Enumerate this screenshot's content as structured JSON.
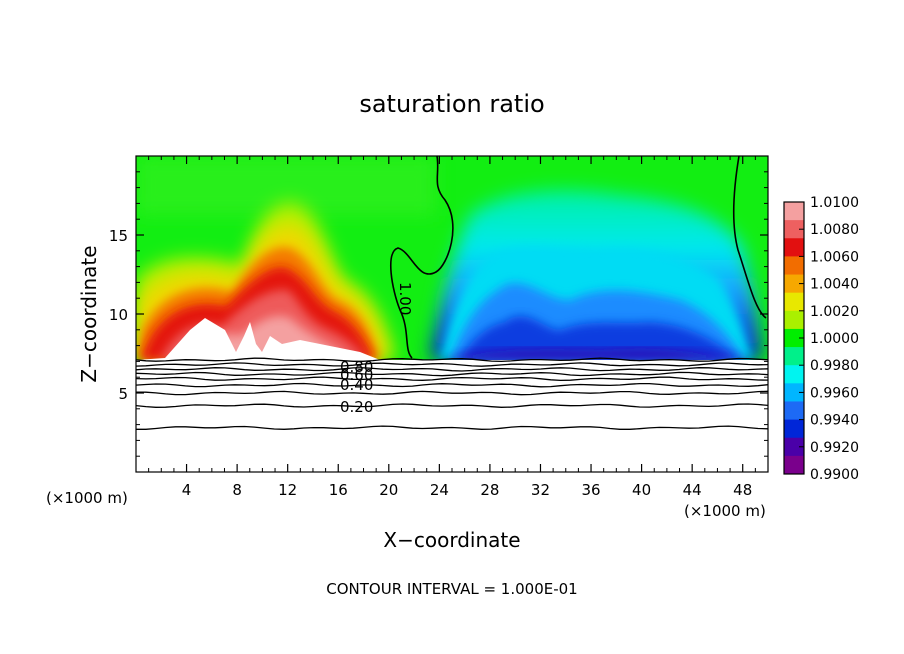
{
  "chart_data": {
    "type": "heatmap",
    "title": "saturation ratio",
    "xlabel": "X−coordinate",
    "ylabel": "Z−coordinate",
    "x_unit_left": "(×1000 m)",
    "x_unit_right": "(×1000 m)",
    "footer": "CONTOUR INTERVAL = 1.000E-01",
    "xlim": [
      0,
      50
    ],
    "ylim": [
      0,
      20
    ],
    "xticks": [
      4,
      8,
      12,
      16,
      20,
      24,
      28,
      32,
      36,
      40,
      44,
      48
    ],
    "yticks": [
      5,
      10,
      15
    ],
    "colorbar": {
      "levels": [
        1.01,
        1.008,
        1.006,
        1.004,
        1.002,
        1.0,
        0.998,
        0.996,
        0.994,
        0.992,
        0.99
      ],
      "tick_labels": [
        "1.0100",
        "1.0080",
        "1.0060",
        "1.0040",
        "1.0020",
        "1.0000",
        "0.9980",
        "0.9960",
        "0.9940",
        "0.9920",
        "0.9900"
      ],
      "colors": [
        "#f4a0a0",
        "#ee6060",
        "#e21010",
        "#f26d00",
        "#f6a800",
        "#e8e800",
        "#aaf000",
        "#00ee00",
        "#00f08a",
        "#00f4f0",
        "#00b6ff",
        "#1d6af5",
        "#0026d8",
        "#4a00a8",
        "#7a008c"
      ]
    },
    "contour_labels": [
      "1.00",
      "0.80",
      "0.60",
      "0.40",
      "0.20"
    ],
    "lower_contour_levels_z": [
      7.1,
      6.8,
      6.5,
      6.2,
      5.9,
      5.5,
      5.0,
      4.2,
      2.8
    ]
  }
}
